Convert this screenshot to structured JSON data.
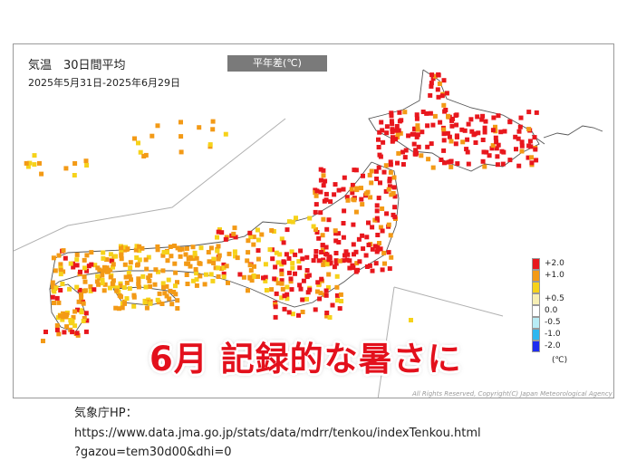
{
  "map": {
    "title": "気温　30日間平均",
    "period": "2025年5月31日-2025年6月29日",
    "mode_label": "平年差(℃)",
    "headline": "6月  記録的な暑さに",
    "copyright": "All Rights Reserved, Copyright(C) Japan Meteorological Agency",
    "legend": {
      "unit": "(℃)",
      "items": [
        {
          "label": "+2.0",
          "color": "#e8171d"
        },
        {
          "label": "+1.0",
          "color": "#f39a16"
        },
        {
          "label": "",
          "color": "#f6d21a"
        },
        {
          "label": "+0.5",
          "color": "#f7efb4"
        },
        {
          "label": "0.0",
          "color": "#ffffff"
        },
        {
          "label": "-0.5",
          "color": "#b8ecf5"
        },
        {
          "label": "-1.0",
          "color": "#2eb7ef"
        },
        {
          "label": "-2.0",
          "color": "#1f2cf0"
        }
      ]
    },
    "colors": {
      "red": "#e8171d",
      "orange": "#f39a16",
      "yellow": "#f6d21a",
      "coast": "#555555"
    }
  },
  "source": {
    "line1": "気象庁HP：",
    "line2": "https://www.data.jma.go.jp/stats/data/mdrr/tenkou/indexTenkou.html",
    "line3": "?gazou=tem30d00&dhi=0"
  }
}
